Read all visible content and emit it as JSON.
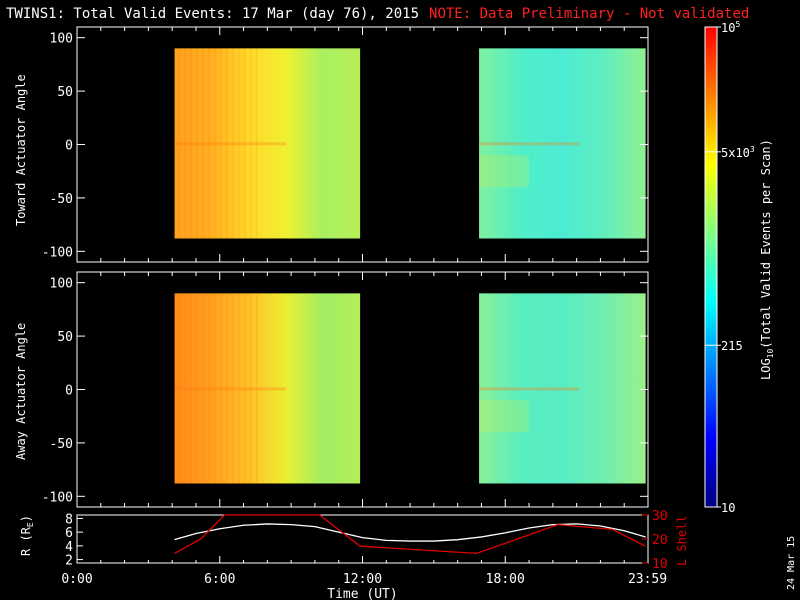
{
  "header": {
    "title": "TWINS1: Total Valid Events: 17 Mar (day  76), 2015",
    "note": "NOTE: Data Preliminary - Not validated"
  },
  "colors": {
    "background": "#000000",
    "note_red": "#ff2020",
    "orbit_white": "#ffffff",
    "lshell_red": "#e00000"
  },
  "chart_data": [
    {
      "type": "heatmap",
      "name": "toward-panel",
      "ylabel": "Toward Actuator Angle",
      "ylim": [
        -110,
        110
      ],
      "yticks": [
        100,
        50,
        0,
        -50,
        -100
      ],
      "xlim": [
        0,
        24
      ],
      "segments": [
        {
          "x": [
            4.1,
            11.9
          ],
          "y": [
            -88,
            90
          ],
          "colors": [
            "#ff9f1f",
            "#ffb020",
            "#ffd82a",
            "#f0f030",
            "#a8f060",
            "#b8ee58"
          ]
        },
        {
          "x": [
            16.9,
            23.9
          ],
          "y": [
            -88,
            90
          ],
          "colors": [
            "#80f0a0",
            "#50eec8",
            "#4cecd4",
            "#60eebe",
            "#90f090"
          ]
        }
      ]
    },
    {
      "type": "heatmap",
      "name": "away-panel",
      "ylabel": "Away Actuator Angle",
      "ylim": [
        -110,
        110
      ],
      "yticks": [
        100,
        50,
        0,
        -50,
        -100
      ],
      "xlim": [
        0,
        24
      ],
      "segments": [
        {
          "x": [
            4.1,
            11.9
          ],
          "y": [
            -88,
            90
          ],
          "colors": [
            "#ff8a18",
            "#ffa020",
            "#ffc028",
            "#ecef32",
            "#a0ef64",
            "#b4ee5a"
          ]
        },
        {
          "x": [
            16.9,
            23.9
          ],
          "y": [
            -88,
            90
          ],
          "colors": [
            "#8af098",
            "#58eec0",
            "#58edc4",
            "#70eeb0",
            "#9cf088"
          ]
        }
      ]
    },
    {
      "type": "line",
      "name": "orbit-panel",
      "xlabel": "Time (UT)",
      "ylabel": "R (R",
      "ylabel_sub": "E",
      "ylabel_close": ")",
      "ylabel_right": "L Shell",
      "xticks": [
        {
          "value": 0,
          "label": "0:00"
        },
        {
          "value": 6,
          "label": "6:00"
        },
        {
          "value": 12,
          "label": "12:00"
        },
        {
          "value": 18,
          "label": "18:00"
        },
        {
          "value": 23.98,
          "label": "23:59"
        }
      ],
      "ylim": [
        1.5,
        8.5
      ],
      "yticks": [
        8,
        6,
        4,
        2
      ],
      "ylim_right": [
        10,
        30
      ],
      "yticks_right": [
        30,
        20,
        10
      ],
      "series": [
        {
          "name": "R",
          "x": [
            4.1,
            5,
            6,
            7,
            8,
            9,
            10,
            11,
            12,
            13,
            14,
            15,
            16,
            17,
            18,
            19,
            20,
            21,
            22,
            23,
            23.9
          ],
          "y": [
            4.9,
            5.8,
            6.5,
            7.0,
            7.2,
            7.1,
            6.8,
            6.0,
            5.2,
            4.8,
            4.7,
            4.7,
            4.9,
            5.3,
            5.9,
            6.6,
            7.1,
            7.2,
            6.9,
            6.2,
            5.3
          ]
        },
        {
          "name": "L Shell",
          "x": [
            4.1,
            5.2,
            6.2,
            10.2,
            11.9,
            16.8,
            20.2,
            22.5,
            23.9
          ],
          "y": [
            14,
            20,
            30,
            30,
            17,
            14,
            26,
            24,
            17
          ]
        }
      ]
    }
  ],
  "colorbar": {
    "label_prefix": "LOG",
    "label_sub": "10",
    "label_suffix": "(Total Valid Events per Scan)",
    "ticks": [
      {
        "frac": 1.0,
        "base": "10",
        "exp": "5"
      },
      {
        "frac": 0.74,
        "base": "5x10",
        "exp": "3"
      },
      {
        "frac": 0.337,
        "base": "215",
        "exp": ""
      },
      {
        "frac": 0.0,
        "base": "10",
        "exp": ""
      }
    ],
    "stops": [
      "#000080",
      "#0000ff",
      "#0080ff",
      "#00ffff",
      "#80ff80",
      "#ffff00",
      "#ff8000",
      "#ff0000"
    ]
  },
  "footer": {
    "date_stamp": "24 Mar 15"
  }
}
